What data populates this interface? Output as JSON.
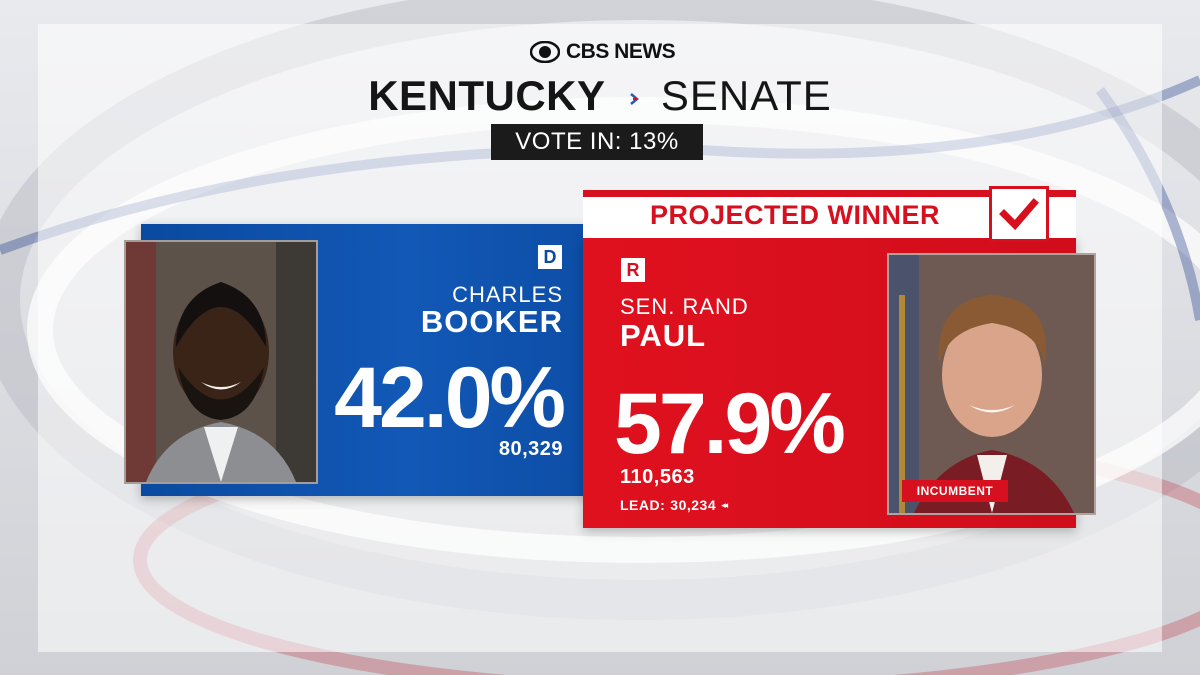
{
  "header": {
    "network": "CBS NEWS",
    "state": "KENTUCKY",
    "office": "SENATE",
    "vote_in_label": "VOTE IN:",
    "vote_in_value": "13%"
  },
  "candidates": {
    "dem": {
      "party": "D",
      "first_name": "CHARLES",
      "last_name": "BOOKER",
      "percent": "42.0%",
      "votes": "80,329",
      "color": "#0a4aa0",
      "photo": "candidate-photo"
    },
    "rep": {
      "party": "R",
      "first_name": "SEN. RAND",
      "last_name": "PAUL",
      "percent": "57.9%",
      "votes": "110,563",
      "lead_label": "LEAD:",
      "lead_value": "30,234",
      "lead_icon": "◂◂",
      "status_badge": "INCUMBENT",
      "color": "#d6101e",
      "photo": "candidate-photo"
    }
  },
  "winner": {
    "label": "PROJECTED WINNER",
    "icon": "checkmark-icon"
  }
}
